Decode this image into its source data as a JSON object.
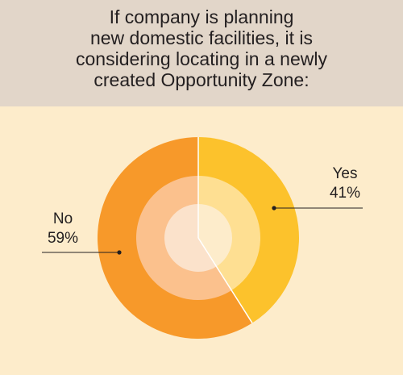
{
  "chart_data": {
    "type": "pie",
    "title_lines": [
      "If company is planning",
      "new domestic facilities, it is",
      "considering locating in a newly",
      "created Opportunity Zone:"
    ],
    "slices": [
      {
        "label": "Yes",
        "value": 41,
        "value_text": "41%",
        "color": "#fcc22c",
        "mid_color": "#fedf92",
        "inner_color": "#fdeccb"
      },
      {
        "label": "No",
        "value": 59,
        "value_text": "59%",
        "color": "#f7992a",
        "mid_color": "#fbc18d",
        "inner_color": "#fbe2cb"
      }
    ]
  },
  "colors": {
    "header_bg": "#e2d6c9",
    "chart_bg": "#fdeccb",
    "text": "#231f20"
  }
}
